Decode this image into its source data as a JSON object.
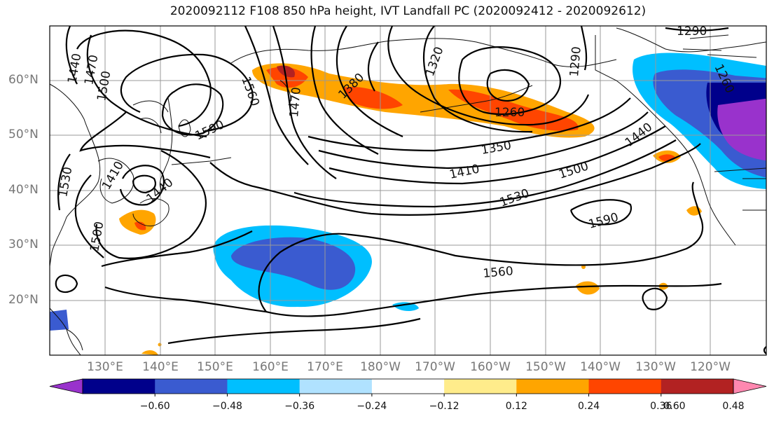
{
  "title": "2020092112 F108 850 hPa height, IVT Landfall PC (2020092412 - 2020092612)",
  "lat_labels": [
    "60°N",
    "50°N",
    "40°N",
    "30°N",
    "20°N"
  ],
  "lon_labels": [
    "130°E",
    "140°E",
    "150°E",
    "160°E",
    "170°E",
    "180°W",
    "170°W",
    "160°W",
    "150°W",
    "140°W",
    "130°W",
    "120°W"
  ],
  "contour_labels": [
    "1290",
    "1260",
    "1320",
    "1290",
    "1470",
    "1440",
    "1500",
    "1560",
    "1590",
    "1470",
    "1380",
    "1260",
    "1350",
    "1410",
    "1500",
    "1440",
    "1530",
    "1590",
    "1560",
    "1410",
    "1440",
    "1530",
    "1500"
  ],
  "colorbar": {
    "tick_labels": [
      "−0.60",
      "−0.48",
      "−0.36",
      "−0.24",
      "−0.12",
      "0.12",
      "0.24",
      "0.36",
      "0.48",
      "0.60"
    ],
    "colors": [
      "#9932cc",
      "#00008b",
      "#3a5bd0",
      "#00bfff",
      "#b0e2ff",
      "#ffffff",
      "#ffec8b",
      "#ffa500",
      "#ff4500",
      "#b22222",
      "#ff88b0"
    ]
  }
}
